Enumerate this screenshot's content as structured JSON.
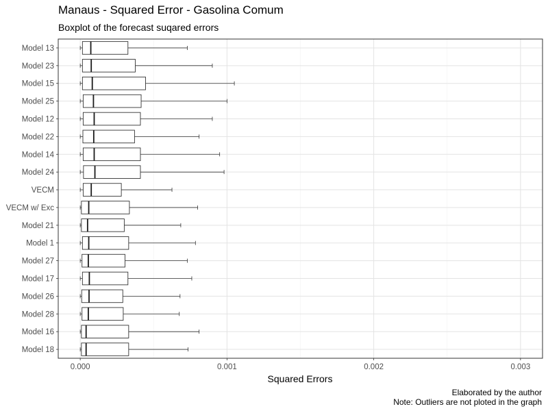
{
  "chart_data": {
    "type": "boxplot",
    "title": "Manaus - Squared Error - Gasolina Comum",
    "subtitle": "Boxplot of the forecast suqared errors",
    "xlabel": "Squared Errors",
    "ylabel": "",
    "xlim": [
      -0.00015,
      0.00315
    ],
    "x_ticks": [
      0.0,
      0.001,
      0.002,
      0.003
    ],
    "x_tick_labels": [
      "0.000",
      "0.001",
      "0.002",
      "0.003"
    ],
    "grid": true,
    "legend": "none",
    "orientation": "horizontal",
    "categories": [
      "Model 13",
      "Model 23",
      "Model 15",
      "Model 25",
      "Model 12",
      "Model 22",
      "Model 14",
      "Model 24",
      "VECM",
      "VECM w/ Exc",
      "Model 21",
      "Model 1",
      "Model 27",
      "Model 17",
      "Model 26",
      "Model 28",
      "Model 16",
      "Model 18"
    ],
    "boxes": [
      {
        "min": 0.0,
        "q1": 1.5e-05,
        "median": 7.2e-05,
        "q3": 0.000325,
        "max": 0.00073
      },
      {
        "min": 0.0,
        "q1": 1.5e-05,
        "median": 7.5e-05,
        "q3": 0.000375,
        "max": 0.0009
      },
      {
        "min": 0.0,
        "q1": 1.5e-05,
        "median": 8.2e-05,
        "q3": 0.000445,
        "max": 0.00105
      },
      {
        "min": 0.0,
        "q1": 2e-05,
        "median": 9e-05,
        "q3": 0.000415,
        "max": 0.001
      },
      {
        "min": 0.0,
        "q1": 2e-05,
        "median": 9.5e-05,
        "q3": 0.00041,
        "max": 0.0009
      },
      {
        "min": 0.0,
        "q1": 1.8e-05,
        "median": 9.2e-05,
        "q3": 0.00037,
        "max": 0.00081
      },
      {
        "min": 0.0,
        "q1": 2e-05,
        "median": 9.5e-05,
        "q3": 0.00041,
        "max": 0.00095
      },
      {
        "min": 0.0,
        "q1": 2.2e-05,
        "median": 0.0001,
        "q3": 0.00041,
        "max": 0.00098
      },
      {
        "min": 0.0,
        "q1": 2e-05,
        "median": 7.5e-05,
        "q3": 0.00028,
        "max": 0.000625
      },
      {
        "min": 0.0,
        "q1": 8e-06,
        "median": 5.8e-05,
        "q3": 0.000335,
        "max": 0.0008
      },
      {
        "min": 0.0,
        "q1": 8e-06,
        "median": 5e-05,
        "q3": 0.0003,
        "max": 0.000685
      },
      {
        "min": 0.0,
        "q1": 1.5e-05,
        "median": 5.8e-05,
        "q3": 0.00033,
        "max": 0.000785
      },
      {
        "min": 0.0,
        "q1": 1.2e-05,
        "median": 5.5e-05,
        "q3": 0.000305,
        "max": 0.00073
      },
      {
        "min": 0.0,
        "q1": 1.5e-05,
        "median": 6.2e-05,
        "q3": 0.000325,
        "max": 0.00076
      },
      {
        "min": 0.0,
        "q1": 1e-05,
        "median": 6e-05,
        "q3": 0.00029,
        "max": 0.00068
      },
      {
        "min": 0.0,
        "q1": 1.2e-05,
        "median": 5.5e-05,
        "q3": 0.000293,
        "max": 0.000675
      },
      {
        "min": 0.0,
        "q1": 8e-06,
        "median": 4e-05,
        "q3": 0.00033,
        "max": 0.00081
      },
      {
        "min": 0.0,
        "q1": 8e-06,
        "median": 4e-05,
        "q3": 0.00033,
        "max": 0.000735
      }
    ]
  },
  "captions": {
    "line1": "Elaborated by the author",
    "line2": "Note: Outliers are not ploted in the graph"
  }
}
